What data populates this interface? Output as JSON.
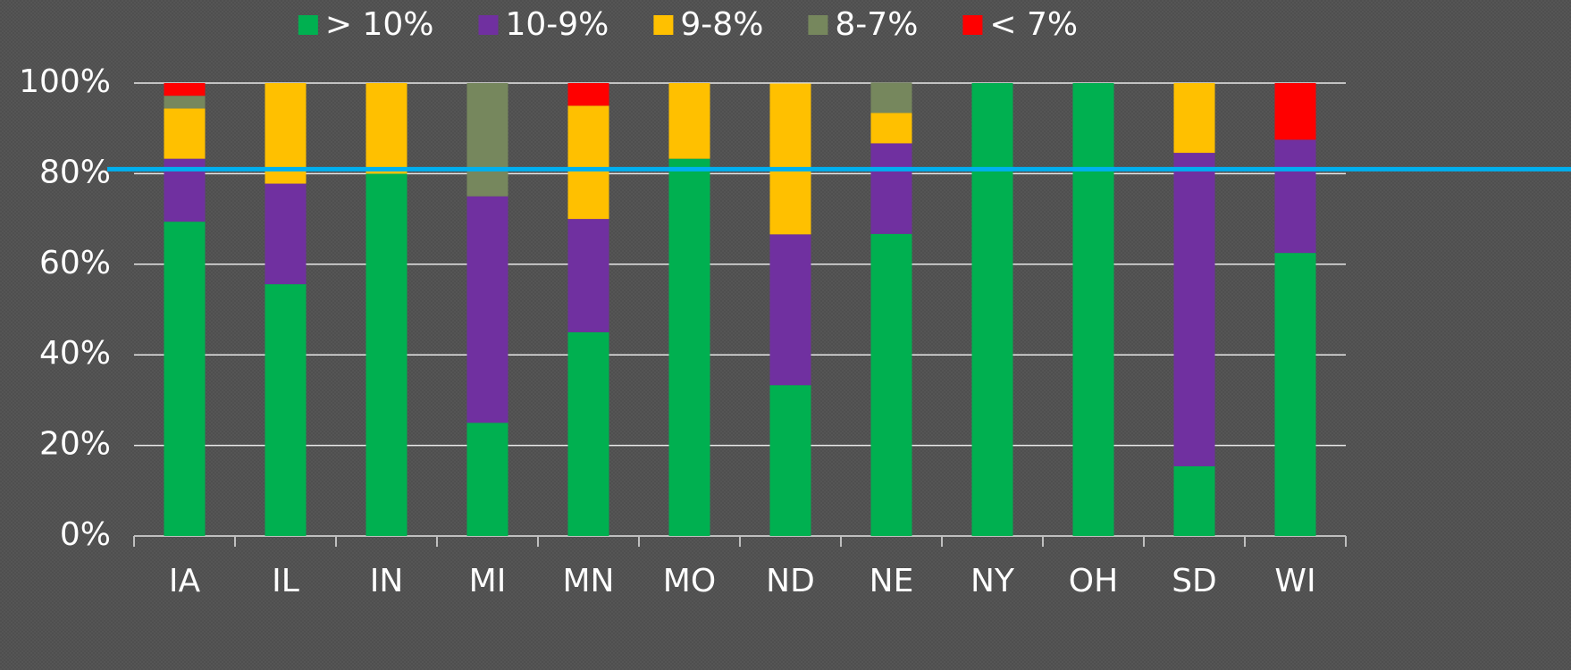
{
  "chart_data": {
    "type": "stacked_bar",
    "categories": [
      "IA",
      "IL",
      "IN",
      "MI",
      "MN",
      "MO",
      "ND",
      "NE",
      "NY",
      "OH",
      "SD",
      "WI"
    ],
    "series": [
      {
        "name": "> 10%",
        "color": "#00b050",
        "values": [
          69.4,
          55.6,
          80,
          25,
          45,
          83.3,
          33.3,
          66.7,
          100,
          100,
          15.4,
          62.5
        ]
      },
      {
        "name": "10-9%",
        "color": "#7030a0",
        "values": [
          13.9,
          22.2,
          0,
          50,
          25,
          0,
          33.3,
          20,
          0,
          0,
          69.2,
          25
        ]
      },
      {
        "name": "9-8%",
        "color": "#ffc000",
        "values": [
          11.1,
          22.2,
          20,
          0,
          25,
          16.7,
          33.3,
          6.7,
          0,
          0,
          15.4,
          0
        ]
      },
      {
        "name": "8-7%",
        "color": "#76875d",
        "values": [
          2.8,
          0,
          0,
          25,
          0,
          0,
          0,
          6.7,
          0,
          0,
          0,
          0
        ]
      },
      {
        "name": "< 7%",
        "color": "#ff0000",
        "values": [
          2.8,
          0,
          0,
          0,
          5,
          0,
          0,
          0,
          0,
          0,
          0,
          12.5
        ]
      }
    ],
    "ylim": [
      0,
      100
    ],
    "yticks": [
      {
        "value": 0,
        "label": "0%"
      },
      {
        "value": 20,
        "label": "20%"
      },
      {
        "value": 40,
        "label": "40%"
      },
      {
        "value": 60,
        "label": "60%"
      },
      {
        "value": 80,
        "label": "80%"
      },
      {
        "value": 100,
        "label": "100%"
      }
    ],
    "grid": true,
    "legend": "top",
    "reference_line": {
      "value": 81,
      "color": "#00b0f0"
    }
  }
}
